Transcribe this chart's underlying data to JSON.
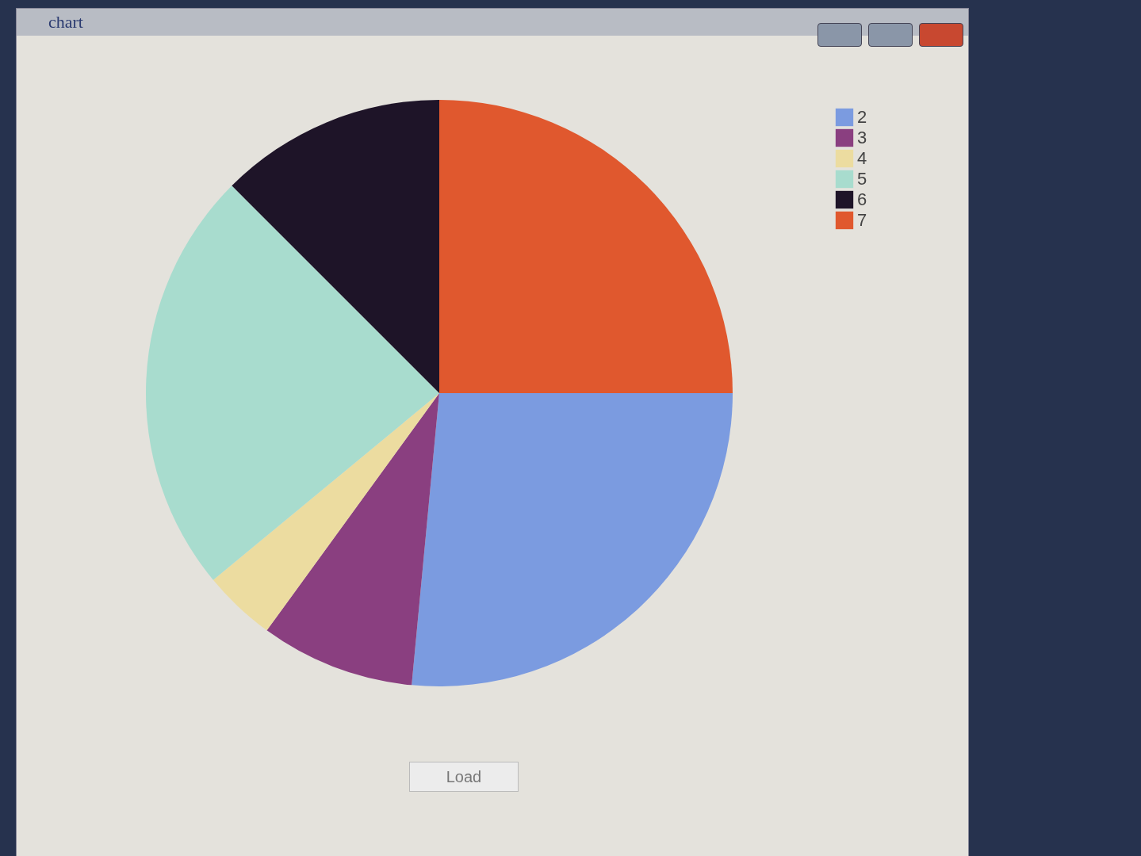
{
  "chart_data": {
    "type": "pie",
    "title": "chart",
    "categories": [
      "2",
      "3",
      "4",
      "5",
      "6",
      "7"
    ],
    "values": [
      26.5,
      8.5,
      4,
      23.5,
      12.5,
      25
    ],
    "colors": [
      "#7b9be0",
      "#8a3f80",
      "#ecdca0",
      "#a8dcce",
      "#1e1428",
      "#e0582e"
    ],
    "legend": "top right",
    "annotations": [
      "Load"
    ]
  }
}
